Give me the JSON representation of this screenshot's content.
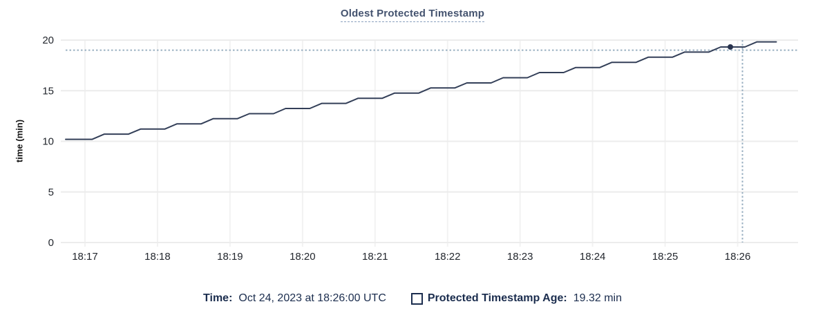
{
  "title": "Oldest Protected Timestamp",
  "y_axis_label": "time (min)",
  "legend": {
    "time_label": "Time:",
    "time_value": "Oct 24, 2023 at 18:26:00 UTC",
    "series_label": "Protected Timestamp Age:",
    "series_value": "19.32 min"
  },
  "colors": {
    "title": "#44536f",
    "title_underline": "#8ba0bf",
    "legend_text": "#1b2d4e",
    "line": "#333f58",
    "dot": "#28334e",
    "crosshair": "#9ab0c2",
    "grid_h": "#ececec",
    "grid_v": "#f2f2f2",
    "tick_text": "#23272e",
    "background": "#ffffff"
  },
  "chart_data": {
    "type": "line",
    "title": "Oldest Protected Timestamp",
    "xlabel": "",
    "ylabel": "time (min)",
    "ylim": [
      0,
      20
    ],
    "y_ticks": [
      0,
      5,
      10,
      15,
      20
    ],
    "x_tick_labels": [
      "18:17",
      "18:18",
      "18:19",
      "18:20",
      "18:21",
      "18:22",
      "18:23",
      "18:24",
      "18:25",
      "18:26"
    ],
    "x_tick_seconds": [
      0,
      60,
      120,
      180,
      240,
      300,
      360,
      420,
      480,
      540
    ],
    "x_domain_seconds": [
      -20,
      590
    ],
    "grid": "on",
    "legend_position": "bottom",
    "series": [
      {
        "name": "Protected Timestamp Age",
        "unit": "min",
        "points": [
          [
            -16,
            10.2
          ],
          [
            6,
            10.2
          ],
          [
            16,
            10.71
          ],
          [
            36,
            10.71
          ],
          [
            46,
            11.21
          ],
          [
            66,
            11.21
          ],
          [
            76,
            11.72
          ],
          [
            96,
            11.72
          ],
          [
            106,
            12.23
          ],
          [
            126,
            12.23
          ],
          [
            136,
            12.73
          ],
          [
            156,
            12.73
          ],
          [
            166,
            13.24
          ],
          [
            186,
            13.24
          ],
          [
            196,
            13.75
          ],
          [
            216,
            13.75
          ],
          [
            226,
            14.25
          ],
          [
            246,
            14.25
          ],
          [
            256,
            14.76
          ],
          [
            276,
            14.76
          ],
          [
            286,
            15.27
          ],
          [
            306,
            15.27
          ],
          [
            316,
            15.77
          ],
          [
            336,
            15.77
          ],
          [
            346,
            16.28
          ],
          [
            366,
            16.28
          ],
          [
            376,
            16.79
          ],
          [
            396,
            16.79
          ],
          [
            406,
            17.29
          ],
          [
            426,
            17.29
          ],
          [
            436,
            17.8
          ],
          [
            456,
            17.8
          ],
          [
            466,
            18.31
          ],
          [
            486,
            18.31
          ],
          [
            496,
            18.81
          ],
          [
            516,
            18.81
          ],
          [
            526,
            19.32
          ],
          [
            546,
            19.32
          ],
          [
            556,
            19.82
          ],
          [
            572,
            19.82
          ]
        ]
      }
    ],
    "crosshair": {
      "time": "18:26:00 UTC",
      "value_label": "19.32 min",
      "t": 544,
      "h_value": 19.0,
      "dot_t": 534,
      "dot_v": 19.32
    }
  }
}
